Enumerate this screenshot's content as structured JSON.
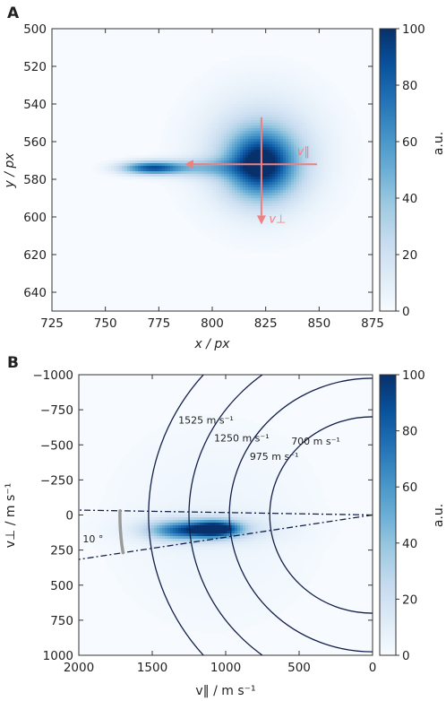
{
  "figure": {
    "panel_a_letter": "A",
    "panel_b_letter": "B"
  },
  "chart_data": [
    {
      "type": "heatmap",
      "panel": "A",
      "xlabel": "x / px",
      "ylabel": "y / px",
      "xlim": [
        725,
        875
      ],
      "ylim": [
        500,
        650
      ],
      "y_inverted": true,
      "xticks": [
        "725",
        "750",
        "775",
        "800",
        "825",
        "850",
        "875"
      ],
      "yticks": [
        "500",
        "520",
        "540",
        "560",
        "580",
        "600",
        "620",
        "640"
      ],
      "colorbar": {
        "label": "a.u.",
        "range": [
          0,
          100
        ],
        "ticks": [
          "0",
          "20",
          "40",
          "60",
          "80",
          "100"
        ]
      },
      "blobs": [
        {
          "x": 823,
          "y": 572,
          "sx": 11,
          "sy": 12,
          "amp": 90
        },
        {
          "x": 772,
          "y": 574,
          "sx": 10,
          "sy": 2.4,
          "amp": 85
        },
        {
          "x": 797,
          "y": 574,
          "sx": 12,
          "sy": 3.5,
          "amp": 30
        },
        {
          "x": 823,
          "y": 566,
          "sx": 20,
          "sy": 22,
          "amp": 25
        }
      ],
      "arrows": [
        {
          "label": "v‖",
          "from": [
            849,
            572
          ],
          "to": [
            787,
            572
          ]
        },
        {
          "label": "v⊥",
          "from": [
            823,
            547
          ],
          "to": [
            823,
            604
          ]
        }
      ],
      "arrow_color": "#f08080"
    },
    {
      "type": "heatmap",
      "panel": "B",
      "xlabel": "v‖ / m s⁻¹",
      "ylabel": "v⊥ / m s⁻¹",
      "xlim": [
        2000,
        0
      ],
      "ylim": [
        -1000,
        1000
      ],
      "y_inverted": true,
      "xticks": [
        "2000",
        "1500",
        "1000",
        "500",
        "0"
      ],
      "yticks": [
        "−1000",
        "−750",
        "−500",
        "−250",
        "0",
        "250",
        "500",
        "750",
        "1000"
      ],
      "colorbar": {
        "label": "a.u.",
        "range": [
          0,
          100
        ],
        "ticks": [
          "0",
          "20",
          "40",
          "60",
          "80",
          "100"
        ]
      },
      "blobs": [
        {
          "x": 1060,
          "y": 100,
          "sx": 110,
          "sy": 40,
          "amp": 95
        },
        {
          "x": 1300,
          "y": 110,
          "sx": 150,
          "sy": 45,
          "amp": 60
        },
        {
          "x": 1150,
          "y": 100,
          "sx": 320,
          "sy": 70,
          "amp": 20
        },
        {
          "x": 1080,
          "y": 60,
          "sx": 500,
          "sy": 500,
          "amp": 5
        }
      ],
      "circles": [
        {
          "radius": 1525,
          "label": "1525 m s⁻¹"
        },
        {
          "radius": 1250,
          "label": "1250 m s⁻¹"
        },
        {
          "radius": 975,
          "label": "975 m s⁻¹"
        },
        {
          "radius": 700,
          "label": "700 m s⁻¹"
        }
      ],
      "angle_lines": [
        -1,
        9
      ],
      "angle_label": "10 °",
      "circle_color": "#14204a"
    }
  ]
}
